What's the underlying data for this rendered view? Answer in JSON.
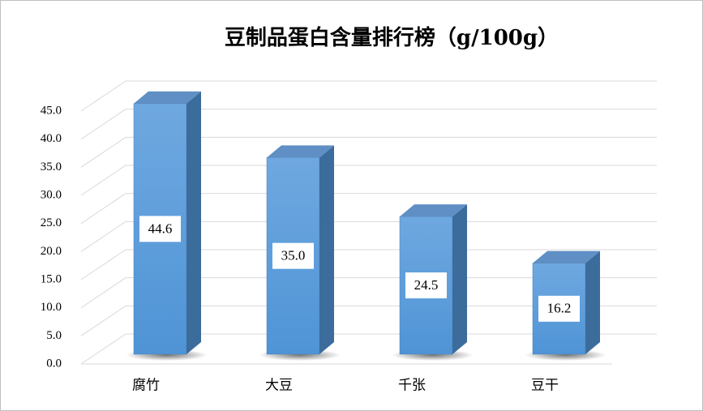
{
  "chart_data": {
    "type": "bar",
    "title": "豆制品蛋白含量排行榜（g/100g）",
    "categories": [
      "腐竹",
      "大豆",
      "千张",
      "豆干"
    ],
    "values": [
      44.6,
      35.0,
      24.5,
      16.2
    ],
    "value_labels": [
      "44.6",
      "35.0",
      "24.5",
      "16.2"
    ],
    "color": "#5b9bd5",
    "ylim": [
      0,
      45
    ],
    "yticks": [
      {
        "value": 0,
        "label": "0.0"
      },
      {
        "value": 5,
        "label": "5.0"
      },
      {
        "value": 10,
        "label": "10.0"
      },
      {
        "value": 15,
        "label": "15.0"
      },
      {
        "value": 20,
        "label": "20.0"
      },
      {
        "value": 25,
        "label": "25.0"
      },
      {
        "value": 30,
        "label": "30.0"
      },
      {
        "value": 35,
        "label": "35.0"
      },
      {
        "value": 40,
        "label": "40.0"
      },
      {
        "value": 45,
        "label": "45.0"
      }
    ],
    "grid": true
  }
}
